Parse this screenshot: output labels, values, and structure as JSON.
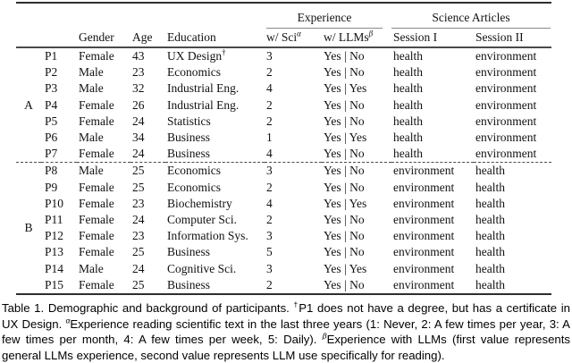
{
  "colors": {
    "rule_heavy": "#2e2e2e",
    "rule_mid": "#4a4a4a",
    "rule_light": "#8a8a8a",
    "text": "#111111"
  },
  "table": {
    "spanners": [
      "Experience",
      "Science Articles"
    ],
    "columns": [
      "Gender",
      "Age",
      "Education",
      "w/ Sci",
      "w/ LLMs",
      "Session I",
      "Session II"
    ],
    "column_sups": [
      "α",
      "β"
    ],
    "groups": [
      {
        "label": "A",
        "rows": [
          {
            "id": "P1",
            "gender": "Female",
            "age": "43",
            "education": "UX Design",
            "education_sup": "†",
            "sci": "3",
            "llms": "Yes | No",
            "session1": "health",
            "session2": "environment"
          },
          {
            "id": "P2",
            "gender": "Male",
            "age": "23",
            "education": "Economics",
            "sci": "2",
            "llms": "Yes | No",
            "session1": "health",
            "session2": "environment"
          },
          {
            "id": "P3",
            "gender": "Male",
            "age": "32",
            "education": "Industrial Eng.",
            "sci": "4",
            "llms": "Yes | Yes",
            "session1": "health",
            "session2": "environment"
          },
          {
            "id": "P4",
            "gender": "Female",
            "age": "26",
            "education": "Industrial Eng.",
            "sci": "2",
            "llms": "Yes | No",
            "session1": "health",
            "session2": "environment"
          },
          {
            "id": "P5",
            "gender": "Female",
            "age": "24",
            "education": "Statistics",
            "sci": "2",
            "llms": "Yes | No",
            "session1": "health",
            "session2": "environment"
          },
          {
            "id": "P6",
            "gender": "Male",
            "age": "34",
            "education": "Business",
            "sci": "1",
            "llms": "Yes | Yes",
            "session1": "health",
            "session2": "environment"
          },
          {
            "id": "P7",
            "gender": "Female",
            "age": "24",
            "education": "Business",
            "sci": "4",
            "llms": "Yes | No",
            "session1": "health",
            "session2": "environment"
          }
        ]
      },
      {
        "label": "B",
        "rows": [
          {
            "id": "P8",
            "gender": "Male",
            "age": "25",
            "education": "Economics",
            "sci": "3",
            "llms": "Yes | No",
            "session1": "environment",
            "session2": "health"
          },
          {
            "id": "P9",
            "gender": "Female",
            "age": "25",
            "education": "Economics",
            "sci": "2",
            "llms": "Yes | No",
            "session1": "environment",
            "session2": "health"
          },
          {
            "id": "P10",
            "gender": "Female",
            "age": "23",
            "education": "Biochemistry",
            "sci": "4",
            "llms": "Yes | Yes",
            "session1": "environment",
            "session2": "health"
          },
          {
            "id": "P11",
            "gender": "Female",
            "age": "24",
            "education": "Computer Sci.",
            "sci": "2",
            "llms": "Yes | No",
            "session1": "environment",
            "session2": "health"
          },
          {
            "id": "P12",
            "gender": "Female",
            "age": "23",
            "education": "Information Sys.",
            "sci": "3",
            "llms": "Yes | No",
            "session1": "environment",
            "session2": "health"
          },
          {
            "id": "P13",
            "gender": "Female",
            "age": "25",
            "education": "Business",
            "sci": "5",
            "llms": "Yes | No",
            "session1": "environment",
            "session2": "health"
          },
          {
            "id": "P14",
            "gender": "Male",
            "age": "24",
            "education": "Cognitive Sci.",
            "sci": "3",
            "llms": "Yes | Yes",
            "session1": "environment",
            "session2": "health"
          },
          {
            "id": "P15",
            "gender": "Female",
            "age": "25",
            "education": "Business",
            "sci": "2",
            "llms": "Yes | No",
            "session1": "environment",
            "session2": "health"
          }
        ]
      }
    ]
  },
  "caption": {
    "seg1": "Table 1. Demographic and background of participants. ",
    "sup1": "†",
    "seg2": "P1 does not have a degree, but has a certificate in UX Design. ",
    "sup2": "α",
    "seg3": "Experience reading scientific text in the last three years (1: Never, 2: A few times per year, 3: A few times per month, 4: A few times per week, 5: Daily). ",
    "sup3": "β",
    "seg4": "Experience with LLMs (first value represents general LLMs experience, second value represents LLM use specifically for reading)."
  }
}
